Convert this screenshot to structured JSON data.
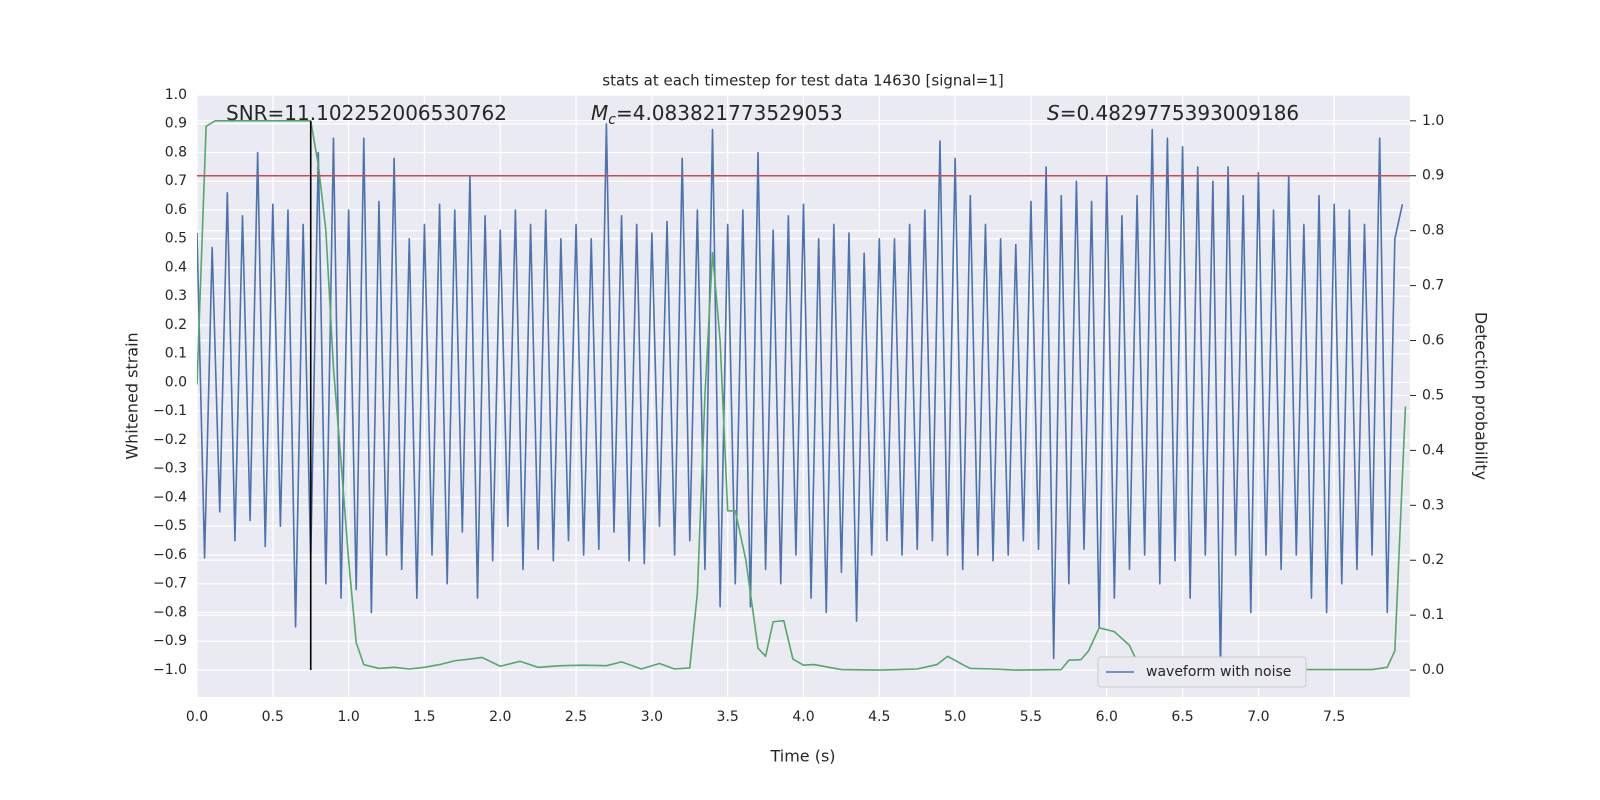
{
  "chart_data": {
    "type": "line",
    "title": "stats at each timestep for test data 14630 [signal=1]",
    "x_label": "Time (s)",
    "y_label": "Whitened strain",
    "y2_label": "Detection probability",
    "xlim": [
      0,
      8.0
    ],
    "ylim": [
      -1.094,
      1.0
    ],
    "y2lim": [
      -0.049,
      1.047
    ],
    "xticks": [
      {
        "value": 0,
        "label": "0.0"
      },
      {
        "value": 0.5,
        "label": "0.5"
      },
      {
        "value": 1,
        "label": "1.0"
      },
      {
        "value": 1.5,
        "label": "1.5"
      },
      {
        "value": 2,
        "label": "2.0"
      },
      {
        "value": 2.5,
        "label": "2.5"
      },
      {
        "value": 3,
        "label": "3.0"
      },
      {
        "value": 3.5,
        "label": "3.5"
      },
      {
        "value": 4,
        "label": "4.0"
      },
      {
        "value": 4.5,
        "label": "4.5"
      },
      {
        "value": 5,
        "label": "5.0"
      },
      {
        "value": 5.5,
        "label": "5.5"
      },
      {
        "value": 6,
        "label": "6.0"
      },
      {
        "value": 6.5,
        "label": "6.5"
      },
      {
        "value": 7,
        "label": "7.0"
      },
      {
        "value": 7.5,
        "label": "7.5"
      }
    ],
    "yticks": [
      {
        "value": -1,
        "label": "−1.0"
      },
      {
        "value": -0.9,
        "label": "−0.9"
      },
      {
        "value": -0.8,
        "label": "−0.8"
      },
      {
        "value": -0.7,
        "label": "−0.7"
      },
      {
        "value": -0.6,
        "label": "−0.6"
      },
      {
        "value": -0.5,
        "label": "−0.5"
      },
      {
        "value": -0.4,
        "label": "−0.4"
      },
      {
        "value": -0.3,
        "label": "−0.3"
      },
      {
        "value": -0.2,
        "label": "−0.2"
      },
      {
        "value": -0.1,
        "label": "−0.1"
      },
      {
        "value": 0,
        "label": "0.0"
      },
      {
        "value": 0.1,
        "label": "0.1"
      },
      {
        "value": 0.2,
        "label": "0.2"
      },
      {
        "value": 0.3,
        "label": "0.3"
      },
      {
        "value": 0.4,
        "label": "0.4"
      },
      {
        "value": 0.5,
        "label": "0.5"
      },
      {
        "value": 0.6,
        "label": "0.6"
      },
      {
        "value": 0.7,
        "label": "0.7"
      },
      {
        "value": 0.8,
        "label": "0.8"
      },
      {
        "value": 0.9,
        "label": "0.9"
      },
      {
        "value": 1,
        "label": "1.0"
      }
    ],
    "y2ticks": [
      {
        "value": 0,
        "label": "0.0"
      },
      {
        "value": 0.1,
        "label": "0.1"
      },
      {
        "value": 0.2,
        "label": "0.2"
      },
      {
        "value": 0.3,
        "label": "0.3"
      },
      {
        "value": 0.4,
        "label": "0.4"
      },
      {
        "value": 0.5,
        "label": "0.5"
      },
      {
        "value": 0.6,
        "label": "0.6"
      },
      {
        "value": 0.7,
        "label": "0.7"
      },
      {
        "value": 0.8,
        "label": "0.8"
      },
      {
        "value": 0.9,
        "label": "0.9"
      },
      {
        "value": 1,
        "label": "1.0"
      }
    ],
    "grid": true,
    "legend_position": "lower right",
    "annotations": [
      {
        "text": "SNR=11.102252006530762"
      },
      {
        "symbol": "M",
        "subscript": "c",
        "text": "=4.083821773529053"
      },
      {
        "symbol": "S",
        "text": "=0.4829775393009186"
      }
    ],
    "threshold": {
      "y2": 0.9,
      "color": "#c44e52"
    },
    "marker_line": {
      "x": 0.75,
      "ymin": -1.0,
      "ymax": 0.909,
      "color": "#000000"
    },
    "series": [
      {
        "name": "waveform with noise",
        "color": "#4c72b0",
        "x": [
          0,
          0.05,
          0.1,
          0.15,
          0.2,
          0.25,
          0.3,
          0.35,
          0.4,
          0.45,
          0.5,
          0.55,
          0.6,
          0.65,
          0.7,
          0.75,
          0.8,
          0.85,
          0.9,
          0.95,
          1,
          1.05,
          1.1,
          1.15,
          1.2,
          1.25,
          1.3,
          1.35,
          1.4,
          1.45,
          1.5,
          1.55,
          1.6,
          1.65,
          1.7,
          1.75,
          1.8,
          1.85,
          1.9,
          1.95,
          2,
          2.05,
          2.1,
          2.15,
          2.2,
          2.25,
          2.3,
          2.35,
          2.4,
          2.45,
          2.5,
          2.55,
          2.6,
          2.65,
          2.7,
          2.75,
          2.8,
          2.85,
          2.9,
          2.95,
          3,
          3.05,
          3.1,
          3.15,
          3.2,
          3.25,
          3.3,
          3.35,
          3.4,
          3.45,
          3.5,
          3.55,
          3.6,
          3.65,
          3.7,
          3.75,
          3.8,
          3.85,
          3.9,
          3.95,
          4,
          4.05,
          4.1,
          4.15,
          4.2,
          4.25,
          4.3,
          4.35,
          4.4,
          4.45,
          4.5,
          4.55,
          4.6,
          4.65,
          4.7,
          4.75,
          4.8,
          4.85,
          4.9,
          4.95,
          5,
          5.05,
          5.1,
          5.15,
          5.2,
          5.25,
          5.3,
          5.35,
          5.4,
          5.45,
          5.5,
          5.55,
          5.6,
          5.65,
          5.7,
          5.75,
          5.8,
          5.85,
          5.9,
          5.95,
          6,
          6.05,
          6.1,
          6.15,
          6.2,
          6.25,
          6.3,
          6.35,
          6.4,
          6.45,
          6.5,
          6.55,
          6.6,
          6.65,
          6.7,
          6.75,
          6.8,
          6.85,
          6.9,
          6.95,
          7,
          7.05,
          7.1,
          7.15,
          7.2,
          7.25,
          7.3,
          7.35,
          7.4,
          7.45,
          7.5,
          7.55,
          7.6,
          7.65,
          7.7,
          7.75,
          7.8,
          7.85,
          7.9,
          7.95
        ],
        "values": [
          0.52,
          -0.61,
          0.47,
          -0.45,
          0.66,
          -0.55,
          0.58,
          -0.48,
          0.8,
          -0.57,
          0.62,
          -0.5,
          0.6,
          -0.85,
          0.55,
          -0.62,
          0.8,
          -0.7,
          0.85,
          -0.75,
          0.6,
          -0.72,
          0.85,
          -0.8,
          0.63,
          -0.6,
          0.78,
          -0.65,
          0.5,
          -0.75,
          0.55,
          -0.6,
          0.62,
          -0.7,
          0.6,
          -0.52,
          0.72,
          -0.75,
          0.58,
          -0.62,
          0.53,
          -0.5,
          0.6,
          -0.65,
          0.55,
          -0.58,
          0.6,
          -0.62,
          0.5,
          -0.55,
          0.55,
          -0.6,
          0.5,
          -0.58,
          0.9,
          -0.52,
          0.58,
          -0.62,
          0.55,
          -0.63,
          0.52,
          -0.5,
          0.56,
          -0.6,
          0.78,
          -0.55,
          0.6,
          -0.65,
          0.88,
          -0.78,
          0.55,
          -0.7,
          0.6,
          -0.78,
          0.8,
          -0.65,
          0.53,
          -0.7,
          0.58,
          -0.6,
          0.62,
          -0.75,
          0.5,
          -0.8,
          0.55,
          -0.66,
          0.52,
          -0.83,
          0.45,
          -0.6,
          0.5,
          -0.55,
          0.5,
          -0.6,
          0.55,
          -0.58,
          0.6,
          -0.55,
          0.84,
          -0.6,
          0.78,
          -0.65,
          0.65,
          -0.6,
          0.55,
          -0.62,
          0.5,
          -0.6,
          0.48,
          -0.55,
          0.63,
          -0.58,
          0.75,
          -0.96,
          0.65,
          -0.7,
          0.7,
          -0.58,
          0.63,
          -0.85,
          0.72,
          -0.75,
          0.58,
          -0.65,
          0.65,
          -0.6,
          0.88,
          -0.7,
          0.85,
          -0.62,
          0.82,
          -0.75,
          0.75,
          -0.6,
          0.7,
          -1.0,
          0.75,
          -0.6,
          0.65,
          -0.8,
          0.73,
          -0.6,
          0.6,
          -0.65,
          0.72,
          -0.6,
          0.55,
          -0.75,
          0.65,
          -0.8,
          0.62,
          -0.7,
          0.6,
          -0.65,
          0.55,
          -0.6,
          0.85,
          -0.8,
          0.5,
          0.62
        ]
      },
      {
        "color": "#55a868",
        "axis": "y2",
        "x": [
          0,
          0.06,
          0.12,
          0.25,
          0.5,
          0.75,
          0.8,
          0.85,
          0.9,
          0.95,
          1.0,
          1.05,
          1.1,
          1.2,
          1.3,
          1.4,
          1.5,
          1.6,
          1.7,
          1.8,
          1.88,
          2.0,
          2.13,
          2.25,
          2.4,
          2.55,
          2.7,
          2.8,
          2.93,
          3.05,
          3.15,
          3.25,
          3.3,
          3.35,
          3.4,
          3.45,
          3.5,
          3.55,
          3.62,
          3.7,
          3.75,
          3.8,
          3.87,
          3.93,
          4.0,
          4.07,
          4.25,
          4.5,
          4.75,
          4.88,
          4.95,
          5.05,
          5.1,
          5.25,
          5.4,
          5.7,
          5.75,
          5.83,
          5.88,
          5.95,
          6.05,
          6.15,
          6.2,
          6.27,
          6.5,
          7.0,
          7.25,
          7.5,
          7.75,
          7.85,
          7.9,
          7.97
        ],
        "values": [
          0.52,
          0.99,
          1.0,
          1.0,
          1.0,
          1.0,
          0.92,
          0.8,
          0.55,
          0.38,
          0.2,
          0.05,
          0.01,
          0.003,
          0.005,
          0.002,
          0.005,
          0.01,
          0.017,
          0.02,
          0.023,
          0.007,
          0.016,
          0.005,
          0.008,
          0.009,
          0.008,
          0.015,
          0.002,
          0.012,
          0.002,
          0.004,
          0.14,
          0.5,
          0.76,
          0.6,
          0.29,
          0.29,
          0.2,
          0.04,
          0.025,
          0.088,
          0.09,
          0.02,
          0.009,
          0.01,
          0.001,
          0.0,
          0.002,
          0.01,
          0.025,
          0.01,
          0.003,
          0.002,
          0.0,
          0.001,
          0.018,
          0.019,
          0.035,
          0.077,
          0.07,
          0.045,
          0.015,
          0.004,
          0.0,
          0.0,
          0.001,
          0.001,
          0.001,
          0.005,
          0.035,
          0.48
        ]
      }
    ]
  }
}
